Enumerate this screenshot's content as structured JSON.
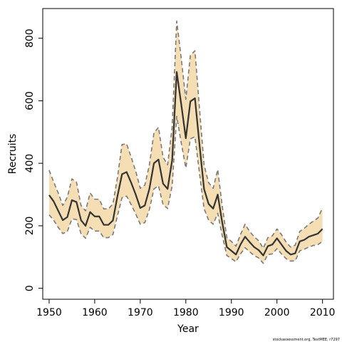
{
  "chart_data": {
    "type": "line",
    "title": "",
    "xlabel": "Year",
    "ylabel": "Recruits",
    "xlim": [
      1948.6,
      2012.4
    ],
    "ylim": [
      -35,
      895
    ],
    "x_ticks": [
      "1950",
      "1960",
      "1970",
      "1980",
      "1990",
      "2000",
      "2010"
    ],
    "y_ticks": [
      "0",
      "200",
      "400",
      "600",
      "800"
    ],
    "grid": false,
    "colors": {
      "band_fill": "#f5deb3",
      "band_border": "#7a7a7a",
      "line": "#333333"
    },
    "x": [
      1950,
      1951,
      1952,
      1953,
      1954,
      1955,
      1956,
      1957,
      1958,
      1959,
      1960,
      1961,
      1962,
      1963,
      1964,
      1965,
      1966,
      1967,
      1968,
      1969,
      1970,
      1971,
      1972,
      1973,
      1974,
      1975,
      1976,
      1977,
      1978,
      1979,
      1980,
      1981,
      1982,
      1983,
      1984,
      1985,
      1986,
      1987,
      1988,
      1989,
      1990,
      1991,
      1992,
      1993,
      1994,
      1995,
      1996,
      1997,
      1998,
      1999,
      2000,
      2001,
      2002,
      2003,
      2004,
      2005,
      2006,
      2007,
      2008,
      2009,
      2010
    ],
    "series": [
      {
        "role": "estimate",
        "values": [
          298,
          278,
          248,
          218,
          228,
          282,
          276,
          218,
          200,
          244,
          230,
          230,
          203,
          203,
          217,
          295,
          365,
          372,
          338,
          300,
          257,
          265,
          318,
          400,
          412,
          335,
          318,
          410,
          692,
          588,
          480,
          598,
          608,
          460,
          318,
          270,
          255,
          300,
          210,
          132,
          120,
          108,
          140,
          165,
          148,
          132,
          122,
          105,
          135,
          140,
          160,
          140,
          120,
          108,
          112,
          150,
          155,
          165,
          170,
          175,
          190
        ]
      },
      {
        "role": "upper",
        "values": [
          378,
          340,
          305,
          265,
          292,
          350,
          340,
          265,
          248,
          305,
          285,
          285,
          254,
          254,
          270,
          355,
          460,
          462,
          420,
          375,
          320,
          330,
          395,
          497,
          515,
          420,
          395,
          515,
          855,
          735,
          605,
          745,
          760,
          575,
          395,
          338,
          320,
          380,
          262,
          162,
          150,
          135,
          172,
          205,
          182,
          165,
          152,
          128,
          162,
          168,
          190,
          172,
          148,
          132,
          138,
          182,
          192,
          205,
          215,
          225,
          258
        ]
      },
      {
        "role": "lower",
        "values": [
          235,
          218,
          195,
          175,
          182,
          222,
          220,
          175,
          160,
          195,
          183,
          183,
          162,
          162,
          172,
          232,
          290,
          295,
          268,
          238,
          205,
          210,
          252,
          318,
          328,
          268,
          255,
          328,
          550,
          465,
          385,
          478,
          485,
          368,
          255,
          218,
          205,
          240,
          168,
          105,
          95,
          85,
          110,
          130,
          117,
          105,
          97,
          80,
          108,
          110,
          127,
          110,
          95,
          87,
          88,
          120,
          125,
          132,
          137,
          140,
          150
        ]
      }
    ],
    "band_label": "",
    "footer": "stockassessment.org, TestMEE, r7297"
  }
}
